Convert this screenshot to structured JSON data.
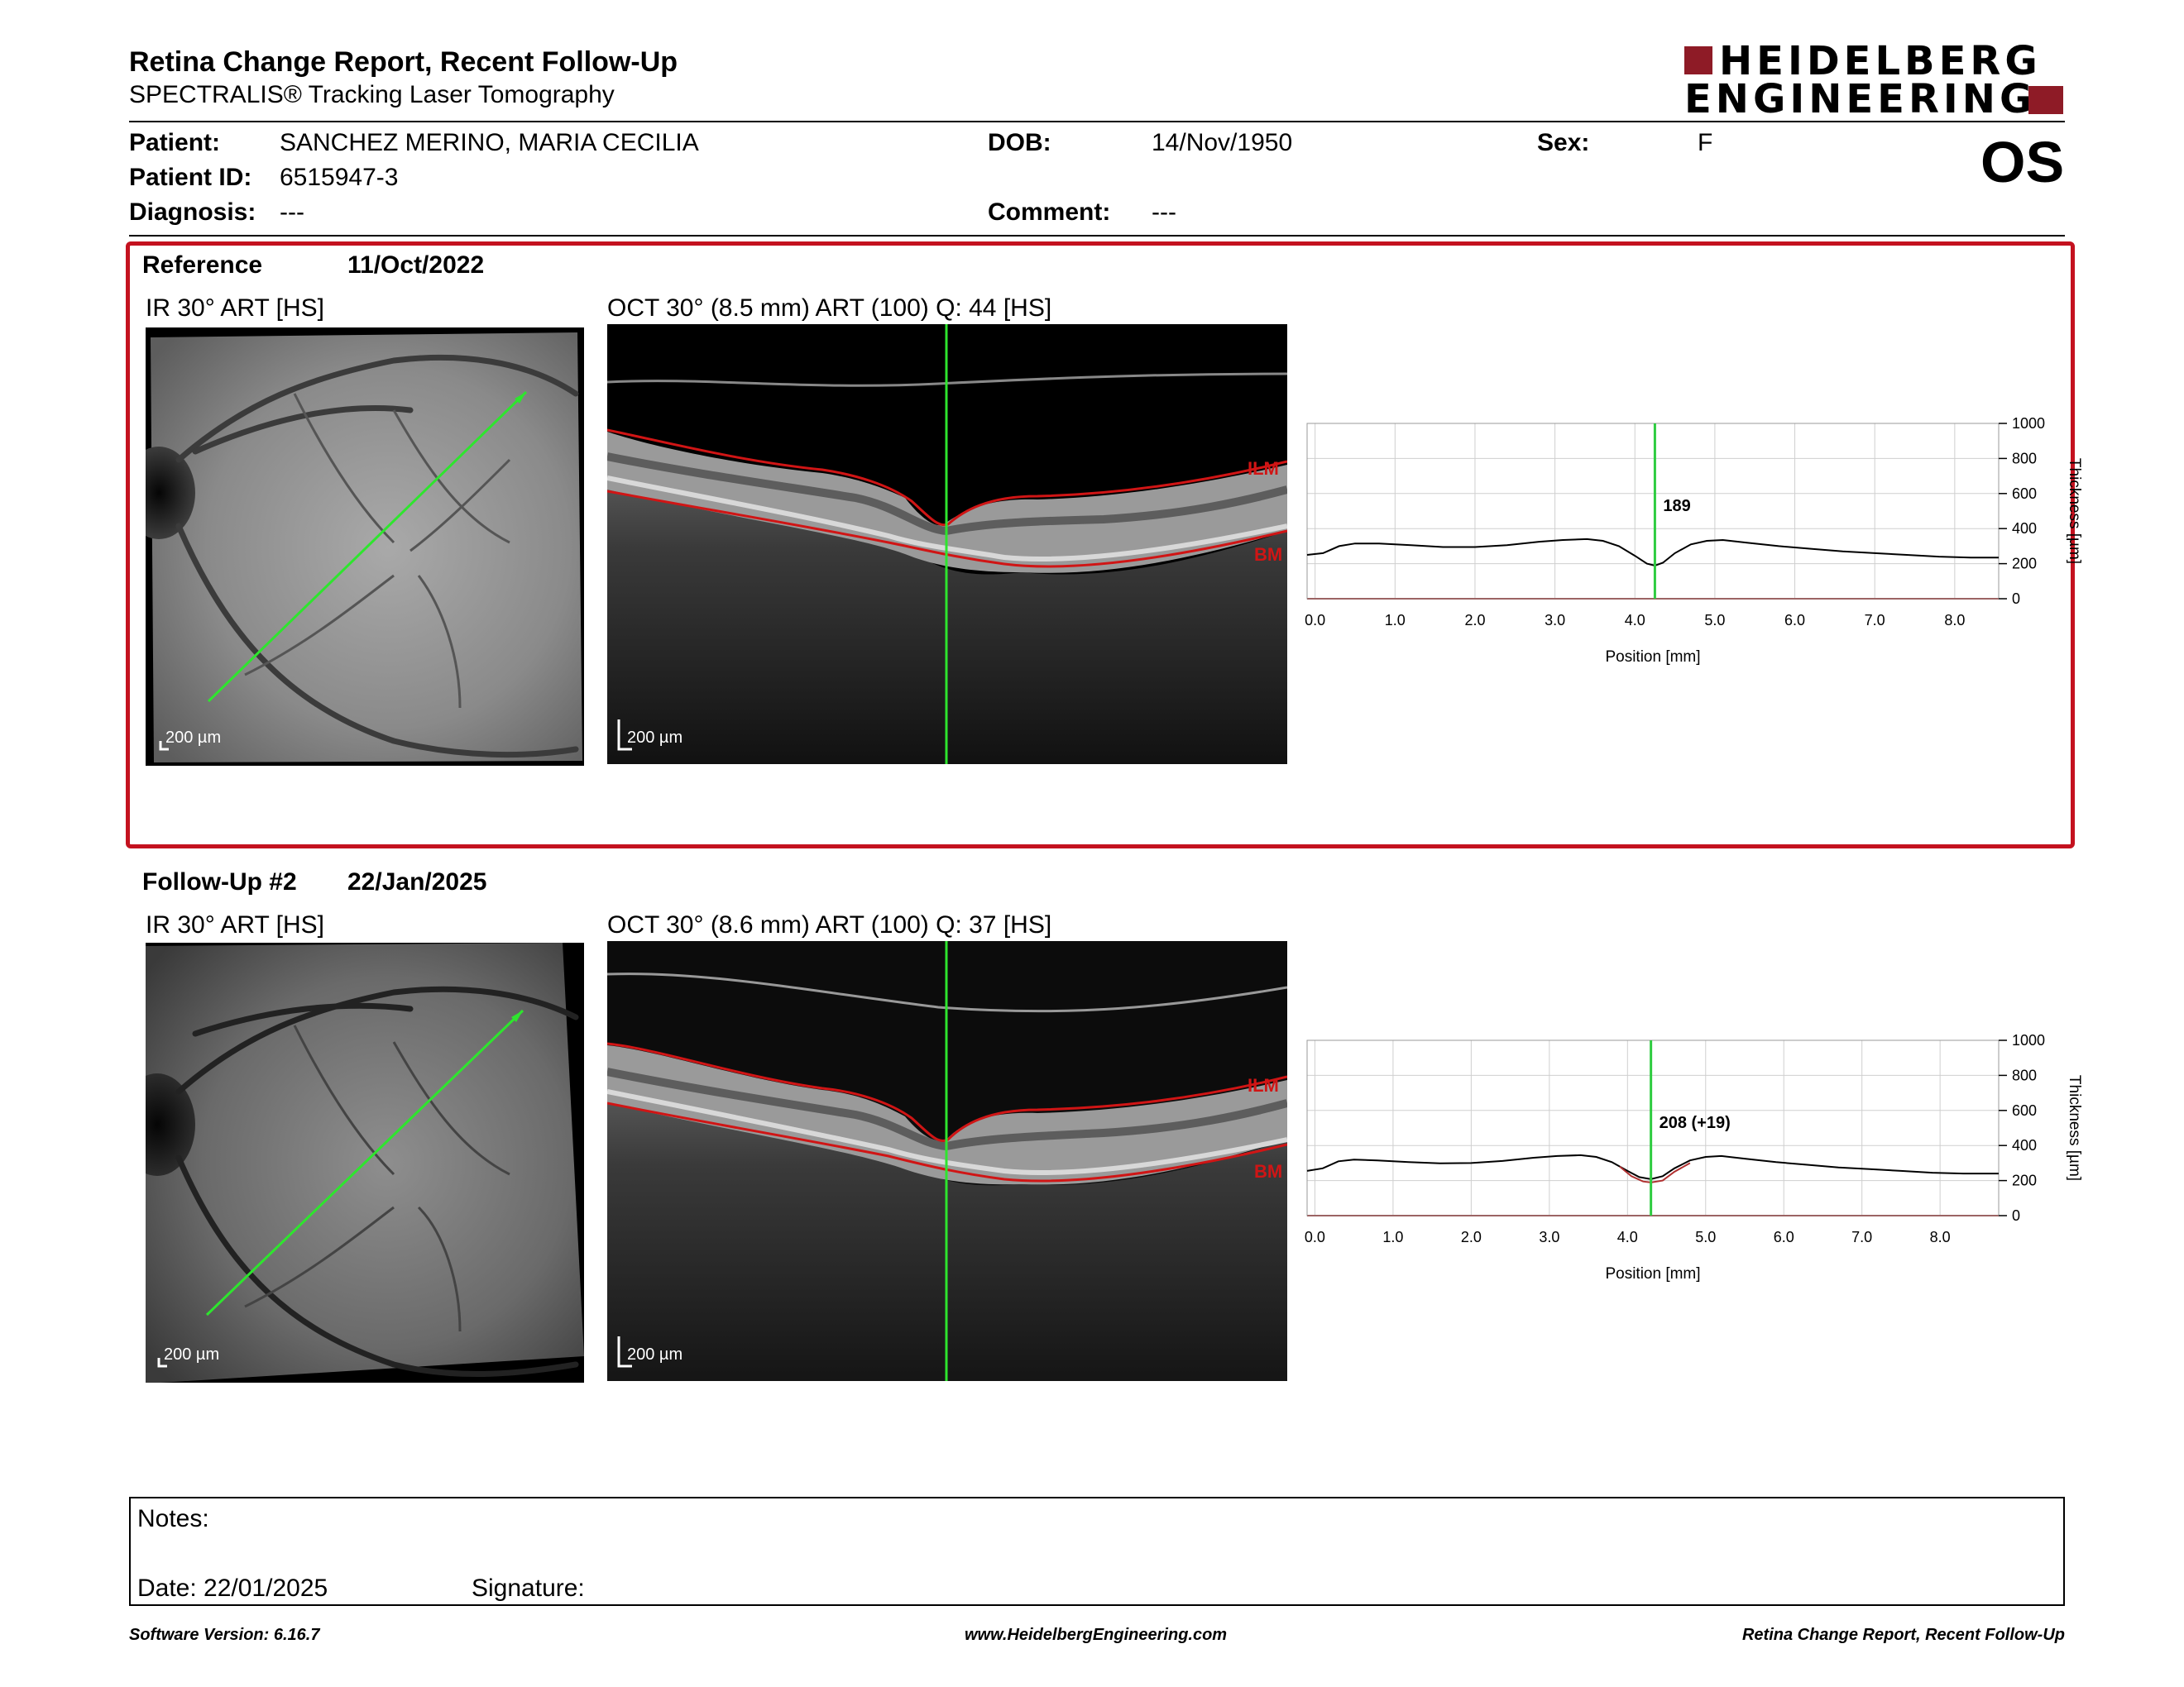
{
  "report": {
    "title": "Retina Change Report, Recent Follow-Up",
    "subtitle": "SPECTRALIS® Tracking Laser Tomography"
  },
  "logo": {
    "line1": "HEIDELBERG",
    "line2": "ENGINEERING",
    "color": "#8e1b26"
  },
  "patient": {
    "name_label": "Patient:",
    "name": "SANCHEZ MERINO, MARIA CECILIA",
    "id_label": "Patient ID:",
    "id": "6515947-3",
    "diagnosis_label": "Diagnosis:",
    "diagnosis": "---",
    "dob_label": "DOB:",
    "dob": "14/Nov/1950",
    "comment_label": "Comment:",
    "comment": "---",
    "sex_label": "Sex:",
    "sex": "F",
    "eye": "OS"
  },
  "reference": {
    "label": "Reference",
    "date": "11/Oct/2022",
    "ir_title": "IR 30° ART [HS]",
    "oct_title": "OCT 30° (8.5 mm) ART (100) Q: 44 [HS]",
    "ir_scale": "200 µm",
    "oct_scale": "200 µm",
    "ilm_label": "ILM",
    "bm_label": "BM",
    "highlight_color": "#c4121f"
  },
  "followup": {
    "label": "Follow-Up #2",
    "date": "22/Jan/2025",
    "ir_title": "IR 30° ART [HS]",
    "oct_title": "OCT 30° (8.6 mm) ART (100) Q: 37 [HS]",
    "ir_scale": "200 µm",
    "oct_scale": "200 µm",
    "ilm_label": "ILM",
    "bm_label": "BM"
  },
  "chart_data": [
    {
      "type": "line",
      "xlabel": "Position [mm]",
      "ylabel": "Thickness [µm]",
      "xlim": [
        -0.1,
        8.55
      ],
      "ylim": [
        0,
        1000
      ],
      "x_ticks": [
        "0.0",
        "1.0",
        "2.0",
        "3.0",
        "4.0",
        "5.0",
        "6.0",
        "7.0",
        "8.0"
      ],
      "y_ticks": [
        "1000",
        "800",
        "600",
        "400",
        "200",
        "0"
      ],
      "grid": true,
      "cursor_x": 4.25,
      "cursor_label": "189",
      "cursor_color": "#2ecc40",
      "series": [
        {
          "color": "#000000",
          "x": [
            -0.1,
            0.1,
            0.3,
            0.5,
            0.8,
            1.2,
            1.6,
            2.0,
            2.4,
            2.8,
            3.1,
            3.4,
            3.6,
            3.8,
            4.0,
            4.15,
            4.25,
            4.35,
            4.5,
            4.7,
            4.9,
            5.1,
            5.4,
            5.8,
            6.2,
            6.6,
            7.0,
            7.4,
            7.8,
            8.2,
            8.55
          ],
          "y": [
            250,
            260,
            300,
            315,
            315,
            305,
            295,
            295,
            305,
            325,
            335,
            340,
            330,
            300,
            245,
            200,
            189,
            205,
            260,
            310,
            330,
            335,
            320,
            300,
            285,
            270,
            260,
            250,
            240,
            235,
            235
          ]
        }
      ]
    },
    {
      "type": "line",
      "xlabel": "Position [mm]",
      "ylabel": "Thickness [µm]",
      "xlim": [
        -0.1,
        8.75
      ],
      "ylim": [
        0,
        1000
      ],
      "x_ticks": [
        "0.0",
        "1.0",
        "2.0",
        "3.0",
        "4.0",
        "5.0",
        "6.0",
        "7.0",
        "8.0"
      ],
      "y_ticks": [
        "1000",
        "800",
        "600",
        "400",
        "200",
        "0"
      ],
      "grid": true,
      "cursor_x": 4.3,
      "cursor_label": "208 (+19)",
      "cursor_color": "#2ecc40",
      "series": [
        {
          "color": "#000000",
          "x": [
            -0.1,
            0.1,
            0.3,
            0.5,
            0.8,
            1.2,
            1.6,
            2.0,
            2.4,
            2.8,
            3.1,
            3.4,
            3.6,
            3.8,
            4.0,
            4.15,
            4.3,
            4.45,
            4.6,
            4.8,
            5.0,
            5.2,
            5.5,
            5.9,
            6.3,
            6.7,
            7.1,
            7.5,
            7.9,
            8.3,
            8.75
          ],
          "y": [
            255,
            270,
            310,
            320,
            315,
            305,
            298,
            300,
            312,
            330,
            340,
            345,
            335,
            305,
            255,
            220,
            208,
            225,
            270,
            315,
            335,
            340,
            325,
            305,
            290,
            275,
            265,
            255,
            245,
            240,
            240
          ]
        },
        {
          "color": "#b03030",
          "x": [
            3.9,
            4.05,
            4.2,
            4.3,
            4.45,
            4.6,
            4.8
          ],
          "y": [
            280,
            225,
            195,
            189,
            200,
            250,
            300
          ]
        }
      ]
    }
  ],
  "notes": {
    "label": "Notes:",
    "date": "Date: 22/01/2025",
    "signature": "Signature:"
  },
  "footer": {
    "left": "Software Version: 6.16.7",
    "center": "www.HeidelbergEngineering.com",
    "right": "Retina Change Report, Recent Follow-Up"
  }
}
